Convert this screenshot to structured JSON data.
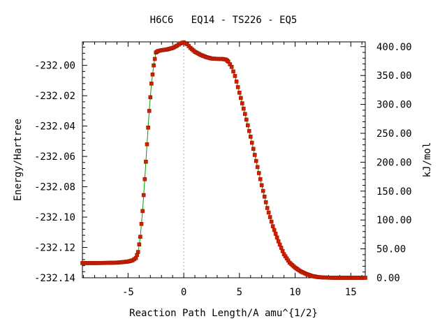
{
  "chart_data": {
    "type": "line",
    "title": "H6C6   EQ14 - TS226 - EQ5",
    "xlabel": "Reaction Path Length/A amu^{1/2}",
    "ylabel": "Energy/Hartree",
    "y2label": "kJ/mol",
    "xlim": [
      -9.1,
      16.3
    ],
    "ylim": [
      -232.14,
      -231.9845
    ],
    "y2lim": [
      0.0,
      408.2
    ],
    "x_ticks": [
      -5,
      0,
      5,
      10,
      15
    ],
    "x_tick_labels": [
      "-5",
      "0",
      "5",
      "10",
      "15"
    ],
    "y_ticks": [
      -232.14,
      -232.12,
      -232.1,
      -232.08,
      -232.06,
      -232.04,
      -232.02,
      -232.0
    ],
    "y_tick_labels": [
      "-232.14",
      "-232.12",
      "-232.10",
      "-232.08",
      "-232.06",
      "-232.04",
      "-232.02",
      "-232.00"
    ],
    "y2_ticks": [
      0,
      50,
      100,
      150,
      200,
      250,
      300,
      350,
      400
    ],
    "y2_tick_labels": [
      "0.00",
      "50.00",
      "100.00",
      "150.00",
      "200.00",
      "250.00",
      "300.00",
      "350.00",
      "400.00"
    ],
    "ts_marker_x": 0.0,
    "line_color": "#00a000",
    "marker_color": "#cc2200",
    "marker_edge_color": "#a01000",
    "ts_line_color": "#aaaaaa",
    "grid": false,
    "series": [
      {
        "x": [
          -9.1,
          -8.0,
          -7.0,
          -6.0,
          -5.5,
          -5.0,
          -4.6,
          -4.3,
          -4.1,
          -3.9,
          -3.7,
          -3.5,
          -3.3,
          -3.1,
          -2.9,
          -2.7,
          -2.5,
          -2.3,
          -2.0,
          -1.5,
          -1.0,
          -0.6,
          -0.3,
          0.0,
          0.3,
          0.6,
          1.0,
          1.5,
          2.0,
          2.5,
          3.0,
          3.5,
          3.8,
          4.0,
          4.3,
          4.6,
          5.0,
          5.5,
          6.0,
          6.5,
          7.0,
          7.5,
          8.0,
          8.5,
          9.0,
          9.5,
          10.0,
          10.5,
          11.0,
          11.5,
          12.0,
          12.5,
          13.0,
          13.5,
          14.0,
          14.5,
          15.0,
          15.5,
          16.0,
          16.3
        ],
        "y": [
          -232.1303,
          -232.1303,
          -232.1302,
          -232.13,
          -232.1297,
          -232.1293,
          -232.1285,
          -232.127,
          -232.123,
          -232.113,
          -232.096,
          -232.075,
          -232.052,
          -232.03,
          -232.012,
          -232.0,
          -231.9915,
          -231.9905,
          -231.99,
          -231.9895,
          -231.9885,
          -231.987,
          -231.9855,
          -231.9848,
          -231.986,
          -231.9885,
          -231.991,
          -231.993,
          -231.9945,
          -231.9955,
          -231.9957,
          -231.9958,
          -231.9962,
          -231.9975,
          -232.001,
          -232.007,
          -232.018,
          -232.032,
          -232.047,
          -232.063,
          -232.079,
          -232.094,
          -232.106,
          -232.116,
          -232.1245,
          -232.13,
          -232.1333,
          -232.1358,
          -232.1375,
          -232.1388,
          -232.1395,
          -232.1398,
          -232.1399,
          -232.14,
          -232.14,
          -232.14,
          -232.14,
          -232.14,
          -232.14,
          -232.14
        ]
      }
    ]
  }
}
